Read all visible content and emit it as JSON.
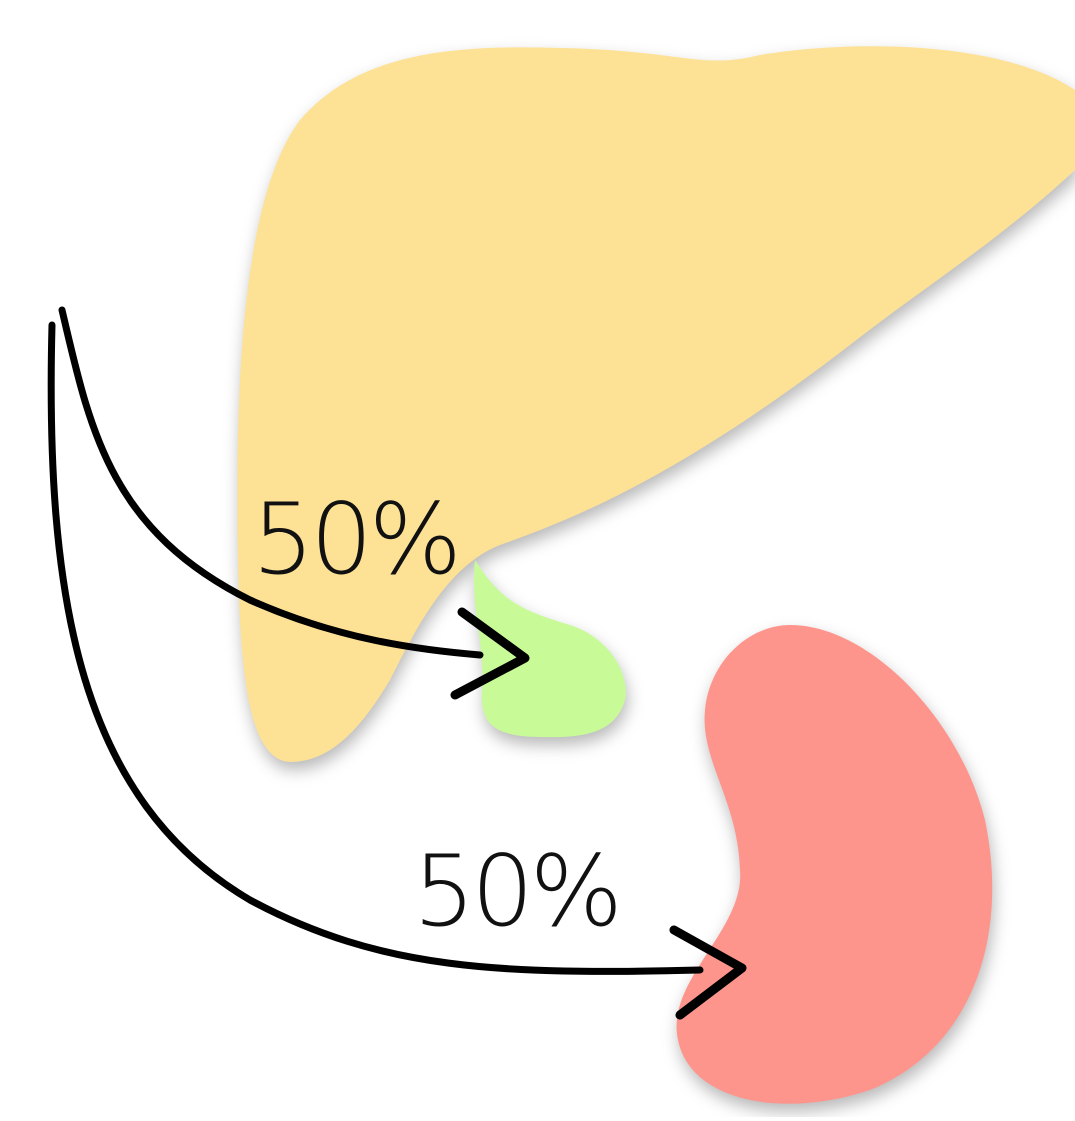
{
  "edges": [
    {
      "label": "50%"
    },
    {
      "label": "50%"
    }
  ]
}
